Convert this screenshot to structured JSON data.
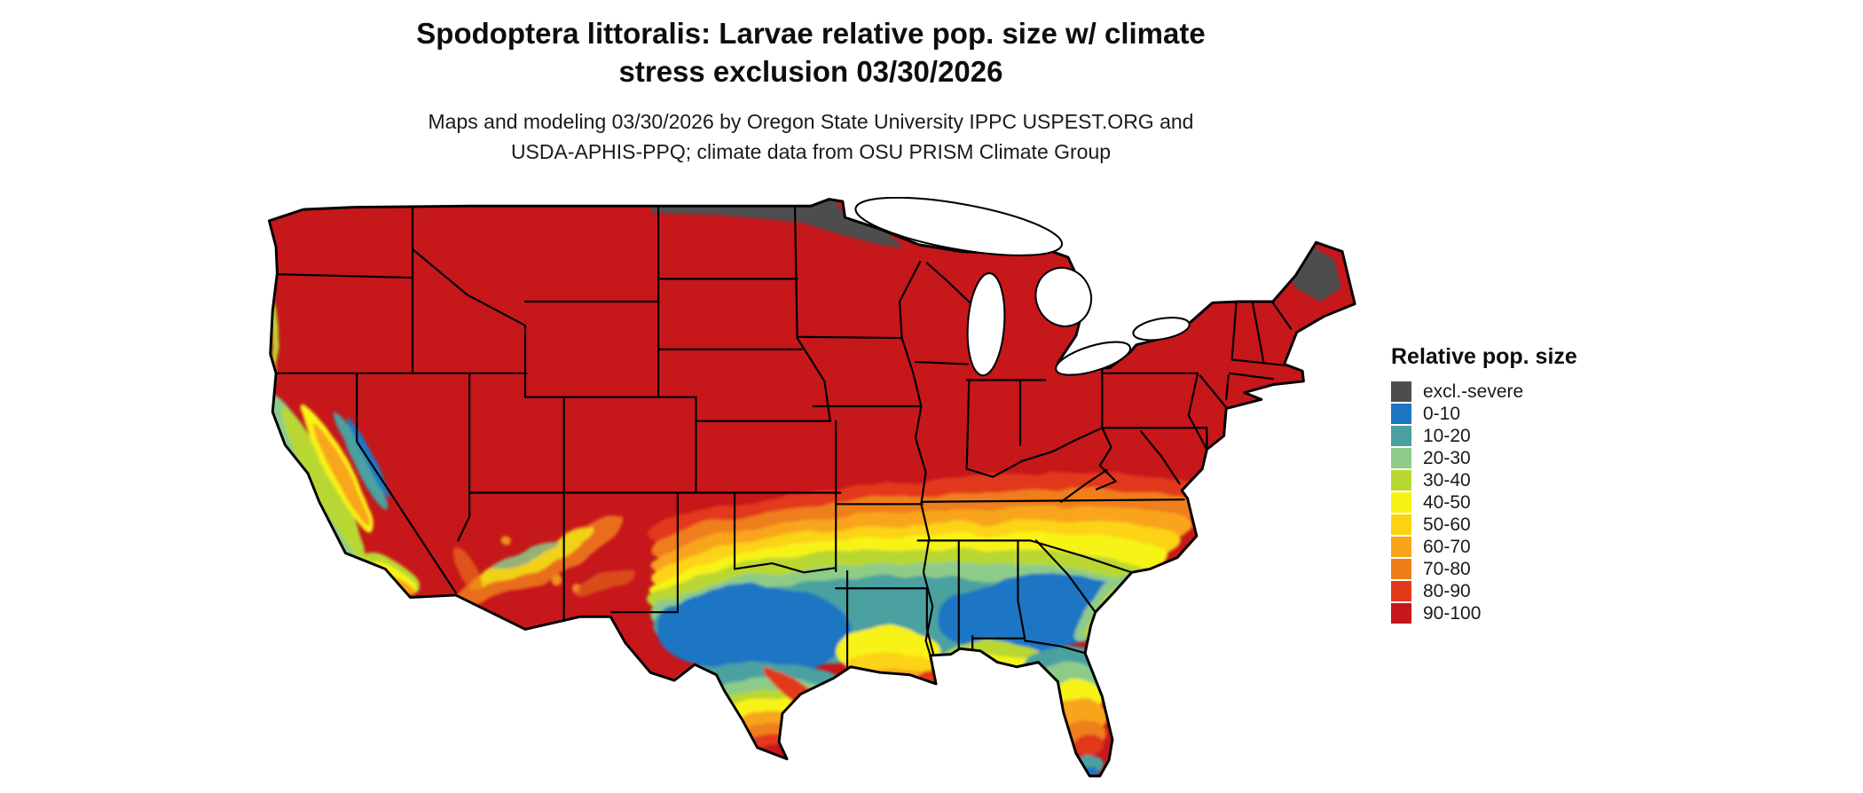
{
  "title": {
    "line1": "Spodoptera littoralis: Larvae relative pop. size w/ climate",
    "line2": "stress exclusion 03/30/2026"
  },
  "subtitle": {
    "line1": "Maps and modeling 03/30/2026 by Oregon State University IPPC USPEST.ORG and",
    "line2": "USDA-APHIS-PPQ; climate data from OSU PRISM Climate Group"
  },
  "legend": {
    "title": "Relative pop. size",
    "entries": [
      {
        "label": "excl.-severe",
        "color": "#4d4d4d"
      },
      {
        "label": "0-10",
        "color": "#1d76c4"
      },
      {
        "label": "10-20",
        "color": "#4ba0a0"
      },
      {
        "label": "20-30",
        "color": "#8dcc88"
      },
      {
        "label": "30-40",
        "color": "#b9d733"
      },
      {
        "label": "40-50",
        "color": "#f8f312"
      },
      {
        "label": "50-60",
        "color": "#fcd312"
      },
      {
        "label": "60-70",
        "color": "#f8a51b"
      },
      {
        "label": "70-80",
        "color": "#ef7e1a"
      },
      {
        "label": "80-90",
        "color": "#e2391b"
      },
      {
        "label": "90-100",
        "color": "#c6171b"
      }
    ]
  }
}
